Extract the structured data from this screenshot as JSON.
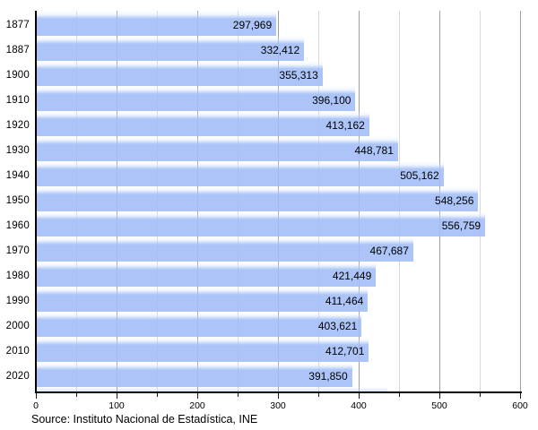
{
  "chart_data": {
    "type": "bar",
    "orientation": "horizontal",
    "title": "",
    "xlabel": "",
    "ylabel": "",
    "categories": [
      "1877",
      "1887",
      "1900",
      "1910",
      "1920",
      "1930",
      "1940",
      "1950",
      "1960",
      "1970",
      "1980",
      "1990",
      "2000",
      "2010",
      "2020"
    ],
    "values": [
      297969,
      332412,
      355313,
      396100,
      413162,
      448781,
      505162,
      548256,
      556759,
      467687,
      421449,
      411464,
      403621,
      412701,
      391850
    ],
    "value_labels": [
      "297,969",
      "332,412",
      "355,313",
      "396,100",
      "413,162",
      "448,781",
      "505,162",
      "548,256",
      "556,759",
      "467,687",
      "421,449",
      "411,464",
      "403,621",
      "412,701",
      "391,850"
    ],
    "axis_unit_divisor": 1000,
    "xlim": [
      0,
      600
    ],
    "x_ticks": [
      0,
      100,
      200,
      300,
      400,
      500,
      600
    ],
    "x_tick_labels": [
      "0",
      "100",
      "200",
      "300",
      "400",
      "500",
      "600"
    ],
    "x_minor_tick_step": 50,
    "grid": "vertical",
    "legend": "none",
    "source": "Source: Instituto Nacional de Estadística, INE"
  },
  "colors": {
    "bar_fill": "#b2c6f7",
    "bar_top_fade": "#ffffff",
    "gridline_minor": "#d9d9d9",
    "gridline_major": "#a0a0a0",
    "axis": "#000000",
    "text": "#000000",
    "background": "#ffffff"
  }
}
